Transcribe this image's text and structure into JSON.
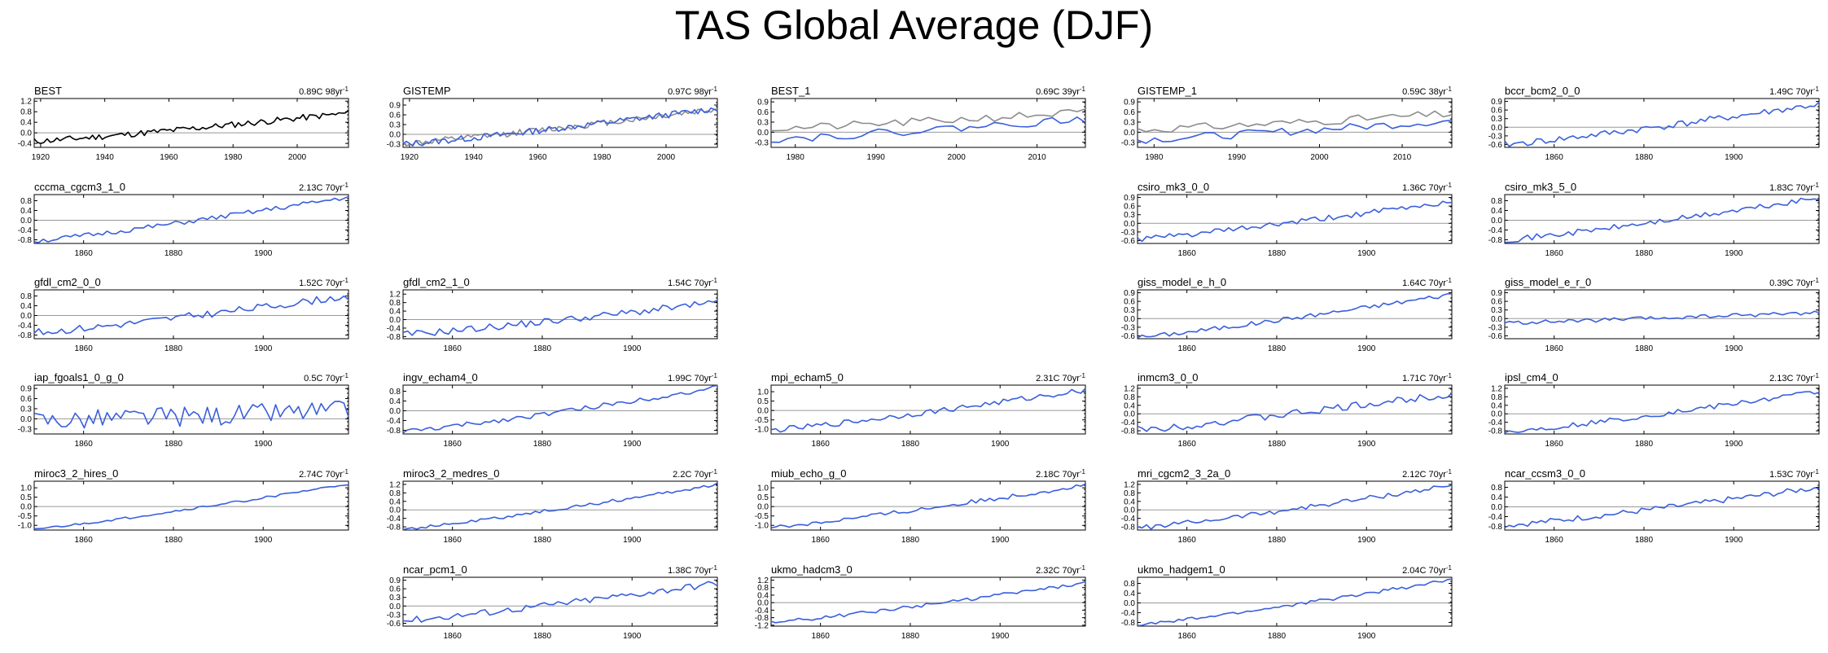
{
  "figure_title": "TAS Global Average (DJF)",
  "colors": {
    "model": "#3a5fdc",
    "observation": "#000000",
    "reference": "#8c8c8c",
    "zero_line": "#999999"
  },
  "chart_data": [
    {
      "type": "line",
      "title": "BEST",
      "stat": "0.89C 98yr",
      "stat_exp": "-1",
      "xlim": [
        1918,
        2016
      ],
      "ylim": [
        -0.55,
        1.3
      ],
      "yticks": [
        "-0.4",
        "0.0",
        "0.4",
        "0.8",
        "1.2"
      ],
      "xticks": [
        "1920",
        "1940",
        "1960",
        "1980",
        "2000"
      ],
      "series": [
        {
          "name": "BEST",
          "color": "#000000",
          "trend": [
            -0.32,
            0.75
          ],
          "amp": 0.12,
          "seed": 11,
          "n": 98
        }
      ]
    },
    {
      "type": "line",
      "title": "GISTEMP",
      "stat": "0.97C 98yr",
      "stat_exp": "-1",
      "xlim": [
        1918,
        2016
      ],
      "ylim": [
        -0.4,
        1.1
      ],
      "yticks": [
        "-0.3",
        "0.0",
        "0.3",
        "0.6",
        "0.9"
      ],
      "xticks": [
        "1920",
        "1940",
        "1960",
        "1980",
        "2000"
      ],
      "series": [
        {
          "name": "GISTEMP-ref",
          "color": "#8c8c8c",
          "trend": [
            -0.28,
            0.78
          ],
          "amp": 0.1,
          "seed": 12,
          "n": 98
        },
        {
          "name": "GISTEMP",
          "color": "#3a5fdc",
          "trend": [
            -0.3,
            0.8
          ],
          "amp": 0.1,
          "seed": 13,
          "n": 98
        }
      ]
    },
    {
      "type": "line",
      "title": "BEST_1",
      "stat": "0.69C 39yr",
      "stat_exp": "-1",
      "xlim": [
        1977,
        2016
      ],
      "ylim": [
        -0.45,
        1.0
      ],
      "yticks": [
        "-0.3",
        "0.0",
        "0.3",
        "0.6",
        "0.9"
      ],
      "xticks": [
        "1980",
        "1990",
        "2000",
        "2010"
      ],
      "series": [
        {
          "name": "BEST_1-ref",
          "color": "#8c8c8c",
          "trend": [
            0.1,
            0.6
          ],
          "amp": 0.12,
          "seed": 21,
          "n": 39
        },
        {
          "name": "BEST_1",
          "color": "#3a5fdc",
          "trend": [
            -0.2,
            0.4
          ],
          "amp": 0.12,
          "seed": 22,
          "n": 39
        }
      ]
    },
    {
      "type": "line",
      "title": "GISTEMP_1",
      "stat": "0.59C 38yr",
      "stat_exp": "-1",
      "xlim": [
        1978,
        2016
      ],
      "ylim": [
        -0.45,
        1.0
      ],
      "yticks": [
        "-0.3",
        "0.0",
        "0.3",
        "0.6",
        "0.9"
      ],
      "xticks": [
        "1980",
        "1990",
        "2000",
        "2010"
      ],
      "series": [
        {
          "name": "GISTEMP_1-ref",
          "color": "#8c8c8c",
          "trend": [
            0.08,
            0.55
          ],
          "amp": 0.12,
          "seed": 31,
          "n": 38
        },
        {
          "name": "GISTEMP_1",
          "color": "#3a5fdc",
          "trend": [
            -0.22,
            0.35
          ],
          "amp": 0.12,
          "seed": 32,
          "n": 38
        }
      ]
    },
    {
      "type": "line",
      "title": "bccr_bcm2_0_0",
      "stat": "1.49C 70yr",
      "stat_exp": "-1",
      "xlim": [
        1849,
        1919
      ],
      "ylim": [
        -0.7,
        1.0
      ],
      "yticks": [
        "-0.6",
        "-0.3",
        "0.0",
        "0.3",
        "0.6",
        "0.9"
      ],
      "xticks": [
        "1860",
        "1880",
        "1900"
      ],
      "series": [
        {
          "name": "bccr_bcm2_0_0",
          "color": "#3a5fdc",
          "trend": [
            -0.6,
            0.8
          ],
          "amp": 0.12,
          "seed": 41,
          "n": 70
        }
      ]
    },
    {
      "type": "line",
      "title": "cccma_cgcm3_1_0",
      "stat": "2.13C 70yr",
      "stat_exp": "-1",
      "xlim": [
        1849,
        1919
      ],
      "ylim": [
        -0.95,
        1.05
      ],
      "yticks": [
        "-0.8",
        "-0.4",
        "0.0",
        "0.4",
        "0.8"
      ],
      "xticks": [
        "1860",
        "1880",
        "1900"
      ],
      "series": [
        {
          "name": "cccma_cgcm3_1_0",
          "color": "#3a5fdc",
          "trend": [
            -0.85,
            0.95
          ],
          "amp": 0.1,
          "seed": 51,
          "n": 70
        }
      ]
    },
    {
      "type": "line",
      "title": "csiro_mk3_0_0",
      "stat": "1.36C 70yr",
      "stat_exp": "-1",
      "xlim": [
        1849,
        1919
      ],
      "ylim": [
        -0.7,
        1.0
      ],
      "yticks": [
        "-0.6",
        "-0.3",
        "0.0",
        "0.3",
        "0.6",
        "0.9"
      ],
      "xticks": [
        "1860",
        "1880",
        "1900"
      ],
      "series": [
        {
          "name": "csiro_mk3_0_0",
          "color": "#3a5fdc",
          "trend": [
            -0.55,
            0.75
          ],
          "amp": 0.1,
          "seed": 61,
          "n": 70
        }
      ]
    },
    {
      "type": "line",
      "title": "csiro_mk3_5_0",
      "stat": "1.83C 70yr",
      "stat_exp": "-1",
      "xlim": [
        1849,
        1919
      ],
      "ylim": [
        -0.95,
        1.05
      ],
      "yticks": [
        "-0.8",
        "-0.4",
        "0.0",
        "0.4",
        "0.8"
      ],
      "xticks": [
        "1860",
        "1880",
        "1900"
      ],
      "series": [
        {
          "name": "csiro_mk3_5_0",
          "color": "#3a5fdc",
          "trend": [
            -0.8,
            0.9
          ],
          "amp": 0.12,
          "seed": 71,
          "n": 70
        }
      ]
    },
    {
      "type": "line",
      "title": "gfdl_cm2_0_0",
      "stat": "1.52C 70yr",
      "stat_exp": "-1",
      "xlim": [
        1849,
        1919
      ],
      "ylim": [
        -0.95,
        1.05
      ],
      "yticks": [
        "-0.8",
        "-0.4",
        "0.0",
        "0.4",
        "0.8"
      ],
      "xticks": [
        "1860",
        "1880",
        "1900"
      ],
      "series": [
        {
          "name": "gfdl_cm2_0_0",
          "color": "#3a5fdc",
          "trend": [
            -0.7,
            0.8
          ],
          "amp": 0.15,
          "seed": 81,
          "n": 70
        }
      ]
    },
    {
      "type": "line",
      "title": "gfdl_cm2_1_0",
      "stat": "1.54C 70yr",
      "stat_exp": "-1",
      "xlim": [
        1849,
        1919
      ],
      "ylim": [
        -0.9,
        1.4
      ],
      "yticks": [
        "-0.8",
        "-0.4",
        "0.0",
        "0.4",
        "0.8",
        "1.2"
      ],
      "xticks": [
        "1860",
        "1880",
        "1900"
      ],
      "series": [
        {
          "name": "gfdl_cm2_1_0",
          "color": "#3a5fdc",
          "trend": [
            -0.7,
            0.8
          ],
          "amp": 0.17,
          "seed": 91,
          "n": 70
        }
      ]
    },
    {
      "type": "line",
      "title": "giss_model_e_h_0",
      "stat": "1.64C 70yr",
      "stat_exp": "-1",
      "xlim": [
        1849,
        1919
      ],
      "ylim": [
        -0.7,
        1.0
      ],
      "yticks": [
        "-0.6",
        "-0.3",
        "0.0",
        "0.3",
        "0.6",
        "0.9"
      ],
      "xticks": [
        "1860",
        "1880",
        "1900"
      ],
      "series": [
        {
          "name": "giss_model_e_h_0",
          "color": "#3a5fdc",
          "trend": [
            -0.65,
            0.85
          ],
          "amp": 0.08,
          "seed": 101,
          "n": 70
        }
      ]
    },
    {
      "type": "line",
      "title": "giss_model_e_r_0",
      "stat": "0.39C 70yr",
      "stat_exp": "-1",
      "xlim": [
        1849,
        1919
      ],
      "ylim": [
        -0.7,
        1.0
      ],
      "yticks": [
        "-0.6",
        "-0.3",
        "0.0",
        "0.3",
        "0.6",
        "0.9"
      ],
      "xticks": [
        "1860",
        "1880",
        "1900"
      ],
      "series": [
        {
          "name": "giss_model_e_r_0",
          "color": "#3a5fdc",
          "trend": [
            -0.15,
            0.22
          ],
          "amp": 0.07,
          "seed": 111,
          "n": 70
        }
      ]
    },
    {
      "type": "line",
      "title": "iap_fgoals1_0_g_0",
      "stat": "0.5C 70yr",
      "stat_exp": "-1",
      "xlim": [
        1849,
        1919
      ],
      "ylim": [
        -0.45,
        1.0
      ],
      "yticks": [
        "-0.3",
        "0.0",
        "0.3",
        "0.6",
        "0.9"
      ],
      "xticks": [
        "1860",
        "1880",
        "1900"
      ],
      "series": [
        {
          "name": "iap_fgoals1_0_g_0",
          "color": "#3a5fdc",
          "trend": [
            -0.05,
            0.25
          ],
          "amp": 0.3,
          "seed": 121,
          "n": 70
        }
      ]
    },
    {
      "type": "line",
      "title": "ingv_echam4_0",
      "stat": "1.99C 70yr",
      "stat_exp": "-1",
      "xlim": [
        1849,
        1919
      ],
      "ylim": [
        -0.95,
        1.05
      ],
      "yticks": [
        "-0.8",
        "-0.4",
        "0.0",
        "0.4",
        "0.8"
      ],
      "xticks": [
        "1860",
        "1880",
        "1900"
      ],
      "series": [
        {
          "name": "ingv_echam4_0",
          "color": "#3a5fdc",
          "trend": [
            -0.85,
            0.95
          ],
          "amp": 0.1,
          "seed": 131,
          "n": 70
        }
      ]
    },
    {
      "type": "line",
      "title": "mpi_echam5_0",
      "stat": "2.31C 70yr",
      "stat_exp": "-1",
      "xlim": [
        1849,
        1919
      ],
      "ylim": [
        -1.25,
        1.35
      ],
      "yticks": [
        "-1.0",
        "-0.5",
        "0.0",
        "0.5",
        "1.0"
      ],
      "xticks": [
        "1860",
        "1880",
        "1900"
      ],
      "series": [
        {
          "name": "mpi_echam5_0",
          "color": "#3a5fdc",
          "trend": [
            -1.05,
            1.1
          ],
          "amp": 0.15,
          "seed": 141,
          "n": 70
        }
      ]
    },
    {
      "type": "line",
      "title": "inmcm3_0_0",
      "stat": "1.71C 70yr",
      "stat_exp": "-1",
      "xlim": [
        1849,
        1919
      ],
      "ylim": [
        -0.95,
        1.35
      ],
      "yticks": [
        "-0.8",
        "-0.4",
        "0.0",
        "0.4",
        "0.8",
        "1.2"
      ],
      "xticks": [
        "1860",
        "1880",
        "1900"
      ],
      "series": [
        {
          "name": "inmcm3_0_0",
          "color": "#3a5fdc",
          "trend": [
            -0.75,
            0.95
          ],
          "amp": 0.18,
          "seed": 151,
          "n": 70
        }
      ]
    },
    {
      "type": "line",
      "title": "ipsl_cm4_0",
      "stat": "2.13C 70yr",
      "stat_exp": "-1",
      "xlim": [
        1849,
        1919
      ],
      "ylim": [
        -0.95,
        1.35
      ],
      "yticks": [
        "-0.8",
        "-0.4",
        "0.0",
        "0.4",
        "0.8",
        "1.2"
      ],
      "xticks": [
        "1860",
        "1880",
        "1900"
      ],
      "series": [
        {
          "name": "ipsl_cm4_0",
          "color": "#3a5fdc",
          "trend": [
            -0.85,
            1.05
          ],
          "amp": 0.12,
          "seed": 161,
          "n": 70
        }
      ]
    },
    {
      "type": "line",
      "title": "miroc3_2_hires_0",
      "stat": "2.74C 70yr",
      "stat_exp": "-1",
      "xlim": [
        1849,
        1919
      ],
      "ylim": [
        -1.25,
        1.35
      ],
      "yticks": [
        "-1.0",
        "-0.5",
        "0.0",
        "0.5",
        "1.0"
      ],
      "xticks": [
        "1860",
        "1880",
        "1900"
      ],
      "series": [
        {
          "name": "miroc3_2_hires_0",
          "color": "#3a5fdc",
          "trend": [
            -1.2,
            1.2
          ],
          "amp": 0.06,
          "seed": 171,
          "n": 70
        }
      ]
    },
    {
      "type": "line",
      "title": "miroc3_2_medres_0",
      "stat": "2.2C 70yr",
      "stat_exp": "-1",
      "xlim": [
        1849,
        1919
      ],
      "ylim": [
        -0.95,
        1.35
      ],
      "yticks": [
        "-0.8",
        "-0.4",
        "0.0",
        "0.4",
        "0.8",
        "1.2"
      ],
      "xticks": [
        "1860",
        "1880",
        "1900"
      ],
      "series": [
        {
          "name": "miroc3_2_medres_0",
          "color": "#3a5fdc",
          "trend": [
            -0.9,
            1.2
          ],
          "amp": 0.08,
          "seed": 181,
          "n": 70
        }
      ]
    },
    {
      "type": "line",
      "title": "miub_echo_g_0",
      "stat": "2.18C 70yr",
      "stat_exp": "-1",
      "xlim": [
        1849,
        1919
      ],
      "ylim": [
        -1.25,
        1.35
      ],
      "yticks": [
        "-1.0",
        "-0.5",
        "0.0",
        "0.5",
        "1.0"
      ],
      "xticks": [
        "1860",
        "1880",
        "1900"
      ],
      "series": [
        {
          "name": "miub_echo_g_0",
          "color": "#3a5fdc",
          "trend": [
            -1.1,
            1.15
          ],
          "amp": 0.12,
          "seed": 191,
          "n": 70
        }
      ]
    },
    {
      "type": "line",
      "title": "mri_cgcm2_3_2a_0",
      "stat": "2.12C 70yr",
      "stat_exp": "-1",
      "xlim": [
        1849,
        1919
      ],
      "ylim": [
        -0.95,
        1.35
      ],
      "yticks": [
        "-0.8",
        "-0.4",
        "0.0",
        "0.4",
        "0.8",
        "1.2"
      ],
      "xticks": [
        "1860",
        "1880",
        "1900"
      ],
      "series": [
        {
          "name": "mri_cgcm2_3_2a_0",
          "color": "#3a5fdc",
          "trend": [
            -0.85,
            1.15
          ],
          "amp": 0.12,
          "seed": 201,
          "n": 70
        }
      ]
    },
    {
      "type": "line",
      "title": "ncar_ccsm3_0_0",
      "stat": "1.53C 70yr",
      "stat_exp": "-1",
      "xlim": [
        1849,
        1919
      ],
      "ylim": [
        -0.95,
        1.05
      ],
      "yticks": [
        "-0.8",
        "-0.4",
        "0.0",
        "0.4",
        "0.8"
      ],
      "xticks": [
        "1860",
        "1880",
        "1900"
      ],
      "series": [
        {
          "name": "ncar_ccsm3_0_0",
          "color": "#3a5fdc",
          "trend": [
            -0.75,
            0.8
          ],
          "amp": 0.12,
          "seed": 211,
          "n": 70
        }
      ]
    },
    {
      "type": "line",
      "title": "ncar_pcm1_0",
      "stat": "1.38C 70yr",
      "stat_exp": "-1",
      "xlim": [
        1849,
        1919
      ],
      "ylim": [
        -0.7,
        1.0
      ],
      "yticks": [
        "-0.6",
        "-0.3",
        "0.0",
        "0.3",
        "0.6",
        "0.9"
      ],
      "xticks": [
        "1860",
        "1880",
        "1900"
      ],
      "series": [
        {
          "name": "ncar_pcm1_0",
          "color": "#3a5fdc",
          "trend": [
            -0.5,
            0.8
          ],
          "amp": 0.12,
          "seed": 221,
          "n": 70
        }
      ]
    },
    {
      "type": "line",
      "title": "ukmo_hadcm3_0",
      "stat": "2.32C 70yr",
      "stat_exp": "-1",
      "xlim": [
        1849,
        1919
      ],
      "ylim": [
        -1.25,
        1.35
      ],
      "yticks": [
        "-1.2",
        "-0.8",
        "-0.4",
        "0.0",
        "0.4",
        "0.8",
        "1.2"
      ],
      "xticks": [
        "1860",
        "1880",
        "1900"
      ],
      "series": [
        {
          "name": "ukmo_hadcm3_0",
          "color": "#3a5fdc",
          "trend": [
            -1.05,
            1.05
          ],
          "amp": 0.09,
          "seed": 231,
          "n": 70
        }
      ]
    },
    {
      "type": "line",
      "title": "ukmo_hadgem1_0",
      "stat": "2.04C 70yr",
      "stat_exp": "-1",
      "xlim": [
        1849,
        1919
      ],
      "ylim": [
        -0.95,
        1.05
      ],
      "yticks": [
        "-0.8",
        "-0.4",
        "0.0",
        "0.4",
        "0.8"
      ],
      "xticks": [
        "1860",
        "1880",
        "1900"
      ],
      "series": [
        {
          "name": "ukmo_hadgem1_0",
          "color": "#3a5fdc",
          "trend": [
            -0.9,
            0.95
          ],
          "amp": 0.07,
          "seed": 241,
          "n": 70
        }
      ]
    }
  ]
}
